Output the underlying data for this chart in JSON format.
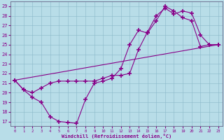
{
  "xlabel": "Windchill (Refroidissement éolien,°C)",
  "bg_color": "#b8dde8",
  "line_color": "#880088",
  "ylim": [
    16.5,
    29.5
  ],
  "xlim": [
    -0.5,
    23.5
  ],
  "yticks": [
    17,
    18,
    19,
    20,
    21,
    22,
    23,
    24,
    25,
    26,
    27,
    28,
    29
  ],
  "xticks": [
    0,
    1,
    2,
    3,
    4,
    5,
    6,
    7,
    8,
    9,
    10,
    11,
    12,
    13,
    14,
    15,
    16,
    17,
    18,
    19,
    20,
    21,
    22,
    23
  ],
  "line1_x": [
    0,
    1,
    2,
    3,
    4,
    5,
    6,
    7,
    8,
    9,
    10,
    11,
    12,
    13,
    14,
    15,
    16,
    17,
    18,
    19,
    20,
    21,
    22,
    23
  ],
  "line1_y": [
    21.3,
    20.3,
    19.5,
    19.0,
    17.5,
    17.0,
    16.9,
    16.8,
    19.3,
    21.0,
    21.2,
    21.5,
    22.5,
    25.0,
    26.5,
    26.2,
    27.5,
    29.0,
    28.5,
    27.8,
    27.5,
    24.8,
    25.0,
    25.0
  ],
  "line2_x": [
    0,
    1,
    2,
    3,
    4,
    5,
    6,
    7,
    8,
    9,
    10,
    11,
    12,
    13,
    14,
    15,
    16,
    17,
    18,
    19,
    20,
    21,
    22,
    23
  ],
  "line2_y": [
    21.3,
    20.3,
    20.0,
    20.5,
    21.0,
    21.2,
    21.2,
    21.2,
    21.2,
    21.2,
    21.5,
    21.8,
    21.8,
    22.0,
    24.5,
    26.3,
    28.0,
    28.8,
    28.2,
    28.5,
    28.3,
    26.0,
    25.0,
    25.0
  ],
  "line3_x": [
    0,
    23
  ],
  "line3_y": [
    21.3,
    25.0
  ]
}
